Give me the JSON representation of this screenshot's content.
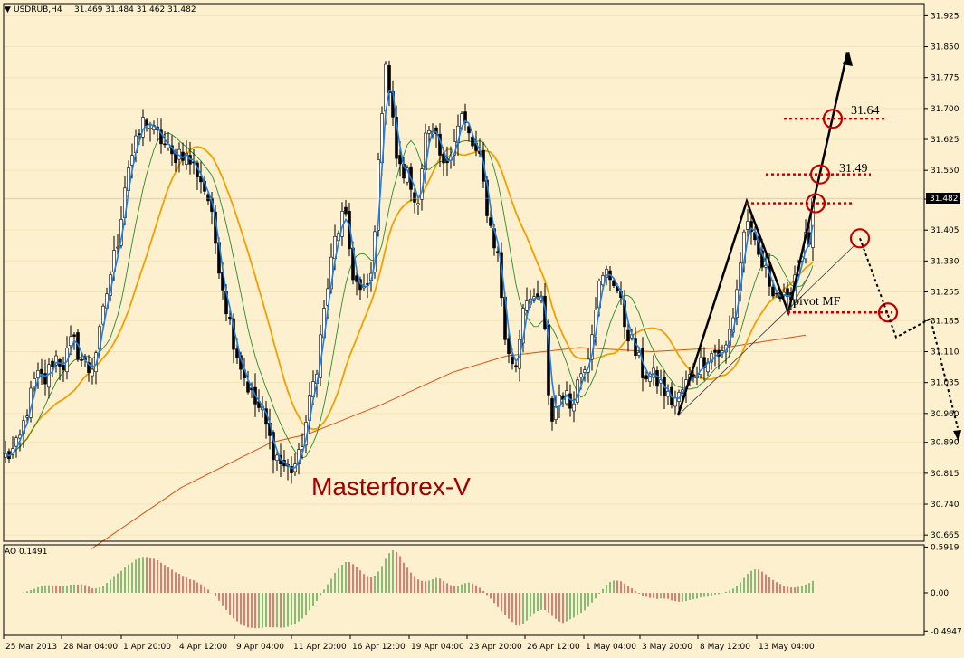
{
  "header": {
    "symbol": "USDRUB,H4",
    "ohlc": "31.469 31.484 31.462 31.482"
  },
  "watermark": "Masterforex-V",
  "current_price_label": "31.482",
  "annotations": {
    "level_1": "31.64",
    "level_2": "31.49",
    "pivot": "pivot MF"
  },
  "colors": {
    "background": "#fdf0cf",
    "bull_candle": "#1a1a1a",
    "fast_ma": "#1e7fe6",
    "medium_ma": "#2a8a2a",
    "slow_ma": "#f0a000",
    "long_ma": "#e05010",
    "ao_up": "#3a9a3a",
    "ao_down": "#c83030",
    "annotation_red": "#c00000",
    "brand": "#a00000"
  },
  "chart_data": [
    {
      "type": "candlestick",
      "title": "USDRUB,H4",
      "y_ticks": [
        "31.925",
        "31.850",
        "31.775",
        "31.700",
        "31.625",
        "31.550",
        "31.480",
        "31.405",
        "31.330",
        "31.255",
        "31.185",
        "31.110",
        "31.035",
        "30.960",
        "30.890",
        "30.815",
        "30.740",
        "30.665"
      ],
      "ylim": [
        30.65,
        31.95
      ],
      "x_ticks": [
        "25 Mar 2013",
        "28 Mar 04:00",
        "1 Apr 20:00",
        "4 Apr 12:00",
        "9 Apr 04:00",
        "11 Apr 20:00",
        "16 Apr 12:00",
        "19 Apr 04:00",
        "23 Apr 20:00",
        "26 Apr 12:00",
        "1 May 04:00",
        "3 May 20:00",
        "8 May 12:00",
        "13 May 04:00"
      ],
      "close_anchors": [
        [
          0,
          30.85
        ],
        [
          10,
          30.86
        ],
        [
          20,
          30.88
        ],
        [
          30,
          30.97
        ],
        [
          40,
          31.05
        ],
        [
          50,
          31.04
        ],
        [
          60,
          31.1
        ],
        [
          70,
          31.08
        ],
        [
          80,
          31.14
        ],
        [
          90,
          31.09
        ],
        [
          100,
          31.06
        ],
        [
          110,
          31.15
        ],
        [
          120,
          31.28
        ],
        [
          130,
          31.38
        ],
        [
          140,
          31.55
        ],
        [
          150,
          31.61
        ],
        [
          160,
          31.68
        ],
        [
          170,
          31.64
        ],
        [
          180,
          31.62
        ],
        [
          190,
          31.58
        ],
        [
          200,
          31.6
        ],
        [
          210,
          31.57
        ],
        [
          220,
          31.54
        ],
        [
          230,
          31.48
        ],
        [
          240,
          31.35
        ],
        [
          250,
          31.22
        ],
        [
          260,
          31.12
        ],
        [
          270,
          31.05
        ],
        [
          280,
          30.99
        ],
        [
          290,
          30.96
        ],
        [
          300,
          30.88
        ],
        [
          310,
          30.84
        ],
        [
          320,
          30.82
        ],
        [
          330,
          30.85
        ],
        [
          340,
          30.96
        ],
        [
          350,
          31.08
        ],
        [
          360,
          31.24
        ],
        [
          370,
          31.38
        ],
        [
          380,
          31.45
        ],
        [
          390,
          31.3
        ],
        [
          400,
          31.24
        ],
        [
          410,
          31.29
        ],
        [
          420,
          31.62
        ],
        [
          425,
          31.84
        ],
        [
          430,
          31.74
        ],
        [
          440,
          31.55
        ],
        [
          450,
          31.54
        ],
        [
          460,
          31.46
        ],
        [
          470,
          31.63
        ],
        [
          480,
          31.63
        ],
        [
          490,
          31.55
        ],
        [
          500,
          31.62
        ],
        [
          510,
          31.68
        ],
        [
          520,
          31.62
        ],
        [
          530,
          31.57
        ],
        [
          540,
          31.43
        ],
        [
          550,
          31.34
        ],
        [
          560,
          31.1
        ],
        [
          570,
          31.08
        ],
        [
          580,
          31.26
        ],
        [
          590,
          31.22
        ],
        [
          600,
          31.25
        ],
        [
          605,
          31.0
        ],
        [
          610,
          30.95
        ],
        [
          620,
          31.02
        ],
        [
          630,
          30.98
        ],
        [
          640,
          31.05
        ],
        [
          650,
          31.11
        ],
        [
          660,
          31.26
        ],
        [
          670,
          31.3
        ],
        [
          680,
          31.28
        ],
        [
          690,
          31.18
        ],
        [
          700,
          31.12
        ],
        [
          710,
          31.06
        ],
        [
          720,
          31.05
        ],
        [
          730,
          31.03
        ],
        [
          740,
          30.99
        ],
        [
          750,
          31.0
        ],
        [
          760,
          31.04
        ],
        [
          770,
          31.07
        ],
        [
          780,
          31.1
        ],
        [
          790,
          31.11
        ],
        [
          800,
          31.1
        ],
        [
          810,
          31.2
        ],
        [
          820,
          31.36
        ],
        [
          825,
          31.45
        ],
        [
          830,
          31.38
        ],
        [
          840,
          31.33
        ],
        [
          850,
          31.28
        ],
        [
          860,
          31.25
        ],
        [
          870,
          31.22
        ],
        [
          880,
          31.32
        ],
        [
          890,
          31.38
        ]
      ],
      "current_price": 31.482
    },
    {
      "type": "bar",
      "title": "AO 0.1491",
      "y_ticks": [
        "0.5919",
        "0.00",
        "-0.4947"
      ],
      "ylim": [
        -0.55,
        0.62
      ]
    }
  ]
}
